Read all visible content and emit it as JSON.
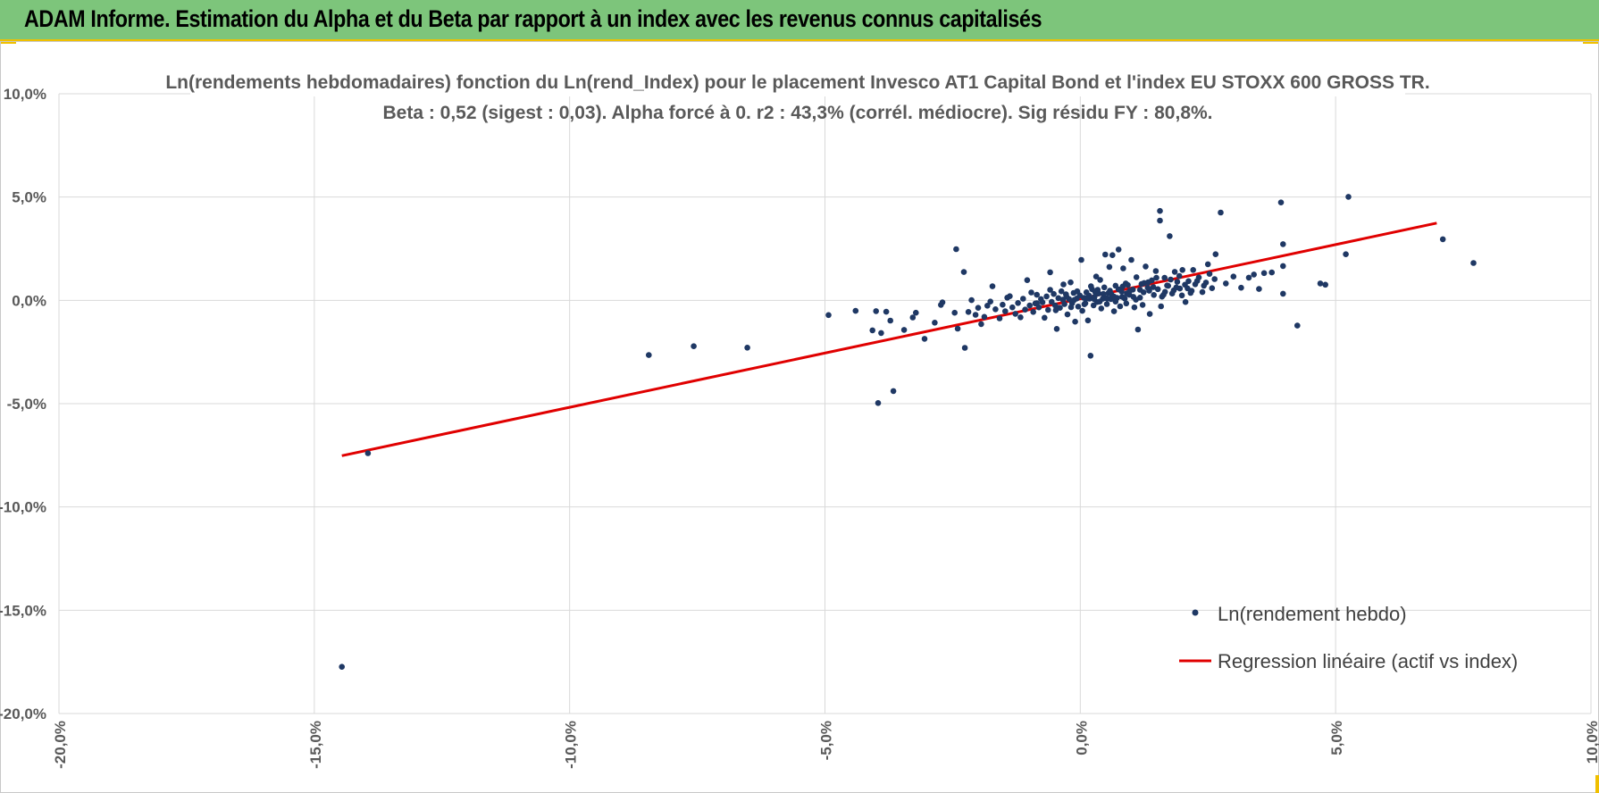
{
  "header": {
    "title": "ADAM Informe. Estimation du Alpha et du Beta par rapport à un index avec les revenus connus capitalisés"
  },
  "colors": {
    "header_bg": "#7dc57b",
    "accent": "#f0c000",
    "points": "#1f3864",
    "regression": "#e00000",
    "grid": "#d9d9d9"
  },
  "chart_data": {
    "type": "scatter",
    "title": "Ln(rendements hebdomadaires) fonction du Ln(rend_Index) pour le placement Invesco AT1 Capital Bond  et l'index EU STOXX 600 GROSS TR.",
    "subtitle": "Beta : 0,52 (sigest : 0,03).  Alpha forcé à 0. r2 : 43,3% (corrél. médiocre). Sig résidu FY : 80,8%.",
    "xlabel": "",
    "ylabel": "",
    "xlim": [
      -0.2,
      0.1
    ],
    "ylim": [
      -0.2,
      0.1
    ],
    "x_ticks": [
      "-20,0%",
      "-15,0%",
      "-10,0%",
      "-5,0%",
      "0,0%",
      "5,0%",
      "10,0%"
    ],
    "y_ticks": [
      "10,0%",
      "5,0%",
      "0,0%",
      "-5,0%",
      "-10,0%",
      "-15,0%",
      "-20,0%"
    ],
    "grid": true,
    "legend": {
      "position": "bottom-right",
      "entries": [
        "Ln(rendement hebdo)",
        "Regression linéaire (actif vs index)"
      ]
    },
    "series": [
      {
        "name": "Ln(rendement hebdo)",
        "kind": "scatter",
        "points": [
          [
            -0.1446,
            -0.1774
          ],
          [
            -0.1395,
            -0.074
          ],
          [
            -0.0845,
            -0.0265
          ],
          [
            -0.0757,
            -0.0222
          ],
          [
            -0.0652,
            -0.0229
          ],
          [
            -0.0493,
            -0.0071
          ],
          [
            -0.044,
            -0.0051
          ],
          [
            -0.0407,
            -0.0145
          ],
          [
            -0.04,
            -0.0052
          ],
          [
            -0.039,
            -0.0158
          ],
          [
            -0.038,
            -0.0055
          ],
          [
            -0.0372,
            -0.0098
          ],
          [
            -0.0366,
            -0.0439
          ],
          [
            -0.0396,
            -0.0497
          ],
          [
            -0.0345,
            -0.0143
          ],
          [
            -0.0328,
            -0.0083
          ],
          [
            -0.0322,
            -0.006
          ],
          [
            -0.0305,
            -0.0186
          ],
          [
            -0.0285,
            -0.0108
          ],
          [
            -0.0273,
            -0.0022
          ],
          [
            -0.027,
            -0.001
          ],
          [
            -0.0246,
            -0.006
          ],
          [
            -0.024,
            -0.0137
          ],
          [
            -0.0243,
            0.0248
          ],
          [
            -0.0228,
            0.0137
          ],
          [
            -0.0226,
            -0.023
          ],
          [
            -0.0219,
            -0.0056
          ],
          [
            -0.0213,
            0.0001
          ],
          [
            -0.0205,
            -0.007
          ],
          [
            -0.02,
            -0.0036
          ],
          [
            -0.0194,
            -0.0115
          ],
          [
            -0.0188,
            -0.008
          ],
          [
            -0.0182,
            -0.0026
          ],
          [
            -0.0176,
            -0.0006
          ],
          [
            -0.0172,
            0.0068
          ],
          [
            -0.0166,
            -0.0043
          ],
          [
            -0.0158,
            -0.0087
          ],
          [
            -0.0152,
            -0.0021
          ],
          [
            -0.0147,
            -0.0053
          ],
          [
            -0.0143,
            0.0013
          ],
          [
            -0.0138,
            0.002
          ],
          [
            -0.0133,
            -0.0034
          ],
          [
            -0.0127,
            -0.0065
          ],
          [
            -0.0122,
            -0.0013
          ],
          [
            -0.0117,
            -0.0082
          ],
          [
            -0.0112,
            0.0008
          ],
          [
            -0.0108,
            -0.0045
          ],
          [
            -0.0104,
            0.0098
          ],
          [
            -0.0099,
            -0.0025
          ],
          [
            -0.0096,
            0.0038
          ],
          [
            -0.0092,
            -0.0056
          ],
          [
            -0.0088,
            -0.0015
          ],
          [
            -0.0085,
            0.0027
          ],
          [
            -0.0081,
            -0.0034
          ],
          [
            -0.0077,
            0.0006
          ],
          [
            -0.0074,
            -0.001
          ],
          [
            -0.007,
            -0.0084
          ],
          [
            -0.0066,
            0.0019
          ],
          [
            -0.0063,
            -0.0046
          ],
          [
            -0.0059,
            0.0136
          ],
          [
            -0.0056,
            -0.0007
          ],
          [
            -0.0052,
            0.0031
          ],
          [
            -0.0049,
            -0.0025
          ],
          [
            -0.0046,
            -0.0138
          ],
          [
            -0.0043,
            0.0011
          ],
          [
            -0.004,
            -0.0036
          ],
          [
            -0.0037,
            0.0044
          ],
          [
            -0.0034,
            0.0003
          ],
          [
            -0.0031,
            -0.0018
          ],
          [
            -0.0028,
            0.0029
          ],
          [
            -0.0025,
            -0.0068
          ],
          [
            -0.0022,
            0.0006
          ],
          [
            -0.0019,
            0.0087
          ],
          [
            -0.0016,
            -0.0014
          ],
          [
            -0.0013,
            0.0036
          ],
          [
            -0.001,
            -0.0103
          ],
          [
            -0.0007,
            0.0009
          ],
          [
            -0.0004,
            -0.003
          ],
          [
            -0.0001,
            0.0024
          ],
          [
            0.0002,
            0.0196
          ],
          [
            0.0004,
            -0.0051
          ],
          [
            0.0007,
            0.0012
          ],
          [
            0.001,
            -0.0014
          ],
          [
            0.0012,
            0.0039
          ],
          [
            0.0015,
            -0.0097
          ],
          [
            0.0018,
            0.0008
          ],
          [
            0.002,
            -0.0268
          ],
          [
            0.0023,
            0.0054
          ],
          [
            0.0026,
            -0.0024
          ],
          [
            0.0028,
            0.0017
          ],
          [
            0.0031,
            0.0115
          ],
          [
            0.0033,
            -0.0008
          ],
          [
            0.0036,
            0.0033
          ],
          [
            0.0039,
            0.0099
          ],
          [
            0.0041,
            -0.0039
          ],
          [
            0.0044,
            0.0008
          ],
          [
            0.0047,
            0.0063
          ],
          [
            0.0049,
            0.0222
          ],
          [
            0.0052,
            -0.0018
          ],
          [
            0.0055,
            0.0035
          ],
          [
            0.0057,
            0.0162
          ],
          [
            0.006,
            0.0006
          ],
          [
            0.0063,
            0.0219
          ],
          [
            0.0066,
            -0.0053
          ],
          [
            0.0069,
            0.0071
          ],
          [
            0.0072,
            0.0012
          ],
          [
            0.0075,
            0.0246
          ],
          [
            0.0078,
            -0.0029
          ],
          [
            0.0081,
            0.0043
          ],
          [
            0.0084,
            0.0155
          ],
          [
            0.0087,
            0.0009
          ],
          [
            0.009,
            -0.0015
          ],
          [
            0.0093,
            0.0074
          ],
          [
            0.0096,
            0.0027
          ],
          [
            0.01,
            0.0196
          ],
          [
            0.0103,
            0.0052
          ],
          [
            0.0106,
            -0.0034
          ],
          [
            0.011,
            0.0112
          ],
          [
            0.0113,
            -0.0141
          ],
          [
            0.0117,
            0.0013
          ],
          [
            0.012,
            0.0079
          ],
          [
            0.0124,
            0.0039
          ],
          [
            0.0128,
            0.0164
          ],
          [
            0.0132,
            0.0061
          ],
          [
            0.0136,
            -0.0066
          ],
          [
            0.014,
            0.0097
          ],
          [
            0.0144,
            0.0026
          ],
          [
            0.0148,
            0.0142
          ],
          [
            0.0152,
            0.0054
          ],
          [
            0.0156,
            0.0433
          ],
          [
            0.0156,
            0.0386
          ],
          [
            0.016,
            0.0018
          ],
          [
            0.0165,
            0.0109
          ],
          [
            0.017,
            0.0072
          ],
          [
            0.0175,
            0.0311
          ],
          [
            0.018,
            0.0033
          ],
          [
            0.0185,
            0.0138
          ],
          [
            0.019,
            0.009
          ],
          [
            0.0195,
            0.0057
          ],
          [
            0.02,
            0.0147
          ],
          [
            0.0206,
            -0.0008
          ],
          [
            0.0212,
            0.0093
          ],
          [
            0.0218,
            0.0046
          ],
          [
            0.0225,
            0.0078
          ],
          [
            0.0232,
            0.0111
          ],
          [
            0.0239,
            0.004
          ],
          [
            0.0246,
            0.0086
          ],
          [
            0.0253,
            0.0128
          ],
          [
            0.0258,
            0.0059
          ],
          [
            0.0263,
            0.0103
          ],
          [
            0.025,
            0.0175
          ],
          [
            0.0265,
            0.0223
          ],
          [
            0.0275,
            0.0425
          ],
          [
            0.0285,
            0.0082
          ],
          [
            0.03,
            0.0115
          ],
          [
            0.0315,
            0.0061
          ],
          [
            0.033,
            0.011
          ],
          [
            0.034,
            0.0125
          ],
          [
            0.035,
            0.0055
          ],
          [
            0.036,
            0.0132
          ],
          [
            0.0375,
            0.0135
          ],
          [
            0.0393,
            0.0474
          ],
          [
            0.0397,
            0.0272
          ],
          [
            0.0397,
            0.0166
          ],
          [
            0.0397,
            0.0032
          ],
          [
            0.0425,
            -0.0122
          ],
          [
            0.047,
            0.0082
          ],
          [
            0.048,
            0.0076
          ],
          [
            0.052,
            0.0223
          ],
          [
            0.0525,
            0.0501
          ],
          [
            0.071,
            0.0296
          ],
          [
            0.077,
            0.0181
          ],
          [
            -0.0085,
            -0.0014
          ],
          [
            -0.0033,
            0.0077
          ],
          [
            -0.0012,
            0.0002
          ],
          [
            0.0013,
            0.0011
          ],
          [
            0.0027,
            0.0006
          ],
          [
            0.0034,
            0.0051
          ],
          [
            0.0049,
            0.0012
          ],
          [
            0.0061,
            0.0029
          ],
          [
            0.0069,
            -0.0006
          ],
          [
            0.0083,
            0.0067
          ],
          [
            0.0091,
            0.0034
          ],
          [
            0.0104,
            0.0017
          ],
          [
            0.0117,
            0.0051
          ],
          [
            0.0122,
            -0.0022
          ],
          [
            0.0133,
            0.0088
          ],
          [
            0.0143,
            0.0064
          ],
          [
            0.0158,
            -0.0029
          ],
          [
            0.0166,
            0.0041
          ],
          [
            0.0177,
            0.0101
          ],
          [
            0.0188,
            0.0063
          ],
          [
            0.0199,
            0.0024
          ],
          [
            0.021,
            0.0058
          ],
          [
            0.0221,
            0.0147
          ],
          [
            -0.0059,
            0.0051
          ],
          [
            -0.0048,
            -0.0048
          ],
          [
            -0.0027,
            0.0018
          ],
          [
            -0.0018,
            -0.0033
          ],
          [
            -0.0006,
            0.0044
          ],
          [
            0.0008,
            -0.0019
          ],
          [
            0.0017,
            0.0023
          ],
          [
            0.0021,
            0.0068
          ],
          [
            0.0029,
            0.0041
          ],
          [
            0.0038,
            -0.0006
          ],
          [
            0.0045,
            0.0031
          ],
          [
            0.0053,
            0.0009
          ],
          [
            0.0058,
            0.0047
          ],
          [
            0.0066,
            0.0018
          ],
          [
            0.0075,
            0.0053
          ],
          [
            0.0082,
            0.0017
          ],
          [
            0.0089,
            0.0082
          ],
          [
            0.0097,
            0.0046
          ],
          [
            0.0109,
            0.0003
          ],
          [
            0.0125,
            0.0084
          ],
          [
            0.0135,
            0.0047
          ],
          [
            0.0149,
            0.0109
          ],
          [
            0.0163,
            0.0027
          ],
          [
            0.0172,
            0.007
          ],
          [
            0.0183,
            0.0048
          ],
          [
            0.0194,
            0.0118
          ],
          [
            0.0205,
            0.0076
          ],
          [
            0.0216,
            0.0036
          ],
          [
            0.0229,
            0.0094
          ],
          [
            0.0242,
            0.0071
          ]
        ]
      },
      {
        "name": "Regression linéaire (actif vs index)",
        "kind": "line",
        "points": [
          [
            -0.1446,
            -0.0752
          ],
          [
            0.0698,
            0.0374
          ]
        ]
      }
    ]
  }
}
